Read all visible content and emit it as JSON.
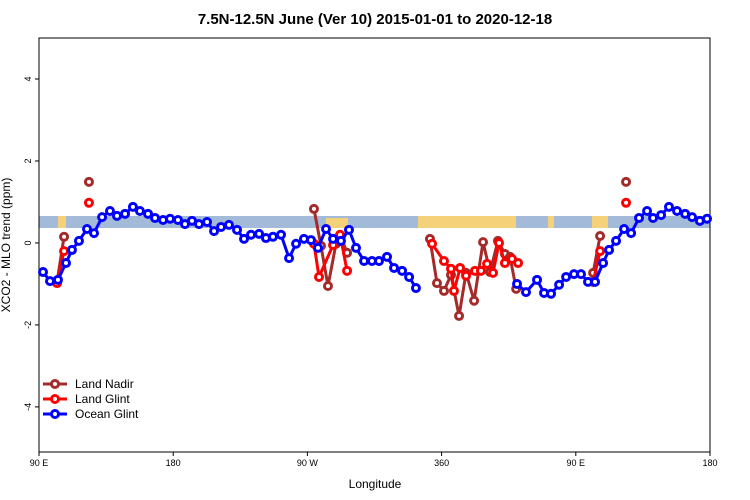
{
  "chart_data": {
    "type": "line",
    "title": "7.5N-12.5N June (Ver 10)   2015-01-01 to 2020-12-18",
    "x_label": "Longitude",
    "y_label": "XCO2 - MLO trend (ppm)",
    "xlim": [
      90,
      540
    ],
    "xticks": [
      {
        "value": 90,
        "label": "90 E"
      },
      180,
      {
        "value": 270,
        "label": "90 W"
      },
      360,
      {
        "value": 450,
        "label": "90 E"
      },
      {
        "value": 540,
        "label": "180"
      }
    ],
    "ylim": [
      -5.1,
      5
    ],
    "yticks": [
      -4,
      -2,
      0,
      2,
      4
    ],
    "legend": "bottom-left",
    "series": [
      {
        "name": "Land Nadir",
        "color": "#a52a2a",
        "x": [
          102.1,
          106.8,
          null,
          123.5,
          null,
          274.4,
          279.1,
          283.8,
          289.2,
          292.5,
          296.6,
          null,
          352.2,
          356.9,
          361.6,
          366.3,
          371.7,
          376.4,
          381.8,
          387.8,
          392.5,
          397.8,
          402.5,
          405.9,
          410.0,
          null,
          461.6,
          466.3,
          null,
          483.7
        ],
        "values": [
          -0.95,
          0.15,
          null,
          1.49,
          null,
          0.83,
          -0.07,
          -1.05,
          -0.02,
          0.15,
          -0.24,
          null,
          0.1,
          -0.98,
          -1.17,
          -0.78,
          -1.78,
          -0.73,
          -1.41,
          0.02,
          -0.71,
          0.05,
          -0.27,
          -0.34,
          -1.12,
          null,
          -0.73,
          0.17,
          null,
          1.49
        ]
      },
      {
        "name": "Land Glint",
        "color": "#ff0000",
        "x": [
          102.1,
          106.8,
          null,
          123.5,
          null,
          274.4,
          277.8,
          287.2,
          291.9,
          296.6,
          null,
          353.6,
          361.6,
          366.3,
          368.3,
          372.4,
          376.4,
          382.4,
          386.4,
          390.5,
          394.5,
          398.5,
          402.5,
          407.2,
          411.3,
          null,
          461.6,
          466.3,
          null,
          483.7
        ],
        "values": [
          -0.98,
          -0.2,
          null,
          0.98,
          null,
          -0.02,
          -0.83,
          -0.05,
          0.2,
          -0.68,
          null,
          -0.02,
          -0.44,
          -0.63,
          -1.17,
          -0.61,
          -0.8,
          -0.68,
          -0.68,
          -0.51,
          -0.73,
          0.0,
          -0.49,
          -0.39,
          -0.49,
          null,
          -0.95,
          -0.2,
          null,
          0.98
        ]
      },
      {
        "name": "Ocean Glint",
        "color": "#0000ff",
        "x": [
          92.7,
          97.4,
          102.7,
          108.1,
          112.1,
          116.8,
          122.2,
          126.9,
          132.3,
          137.6,
          142.3,
          147.7,
          153.0,
          157.7,
          163.1,
          167.8,
          173.2,
          177.9,
          183.2,
          187.9,
          192.6,
          197.3,
          202.7,
          207.4,
          212.1,
          217.4,
          222.8,
          227.5,
          232.2,
          237.6,
          242.2,
          246.9,
          252.3,
          257.7,
          262.4,
          267.7,
          272.4,
          277.1,
          282.5,
          287.2,
          292.5,
          297.9,
          302.6,
          308.0,
          313.3,
          318.0,
          323.4,
          328.1,
          333.5,
          338.2,
          342.8,
          null,
          410.6,
          416.6,
          424.0,
          428.7,
          433.4,
          438.8,
          443.5,
          448.8,
          453.5,
          458.2,
          462.9,
          468.3,
          472.3,
          477.0,
          482.4,
          487.1,
          492.4,
          497.8,
          501.8,
          507.2,
          512.5,
          517.9,
          523.3,
          528.0,
          533.2,
          538.0
        ],
        "values": [
          -0.71,
          -0.93,
          -0.9,
          -0.49,
          -0.17,
          0.05,
          0.34,
          0.24,
          0.63,
          0.78,
          0.66,
          0.71,
          0.88,
          0.78,
          0.71,
          0.61,
          0.56,
          0.59,
          0.56,
          0.46,
          0.54,
          0.46,
          0.51,
          0.29,
          0.39,
          0.44,
          0.32,
          0.1,
          0.2,
          0.22,
          0.12,
          0.15,
          0.2,
          -0.37,
          -0.02,
          0.1,
          0.07,
          -0.12,
          0.34,
          0.1,
          0.05,
          0.32,
          -0.12,
          -0.44,
          -0.44,
          -0.44,
          -0.34,
          -0.61,
          -0.68,
          -0.83,
          -1.1,
          null,
          -1.0,
          -1.2,
          -0.9,
          -1.22,
          -1.24,
          -1.02,
          -0.83,
          -0.76,
          -0.76,
          -0.95,
          -0.95,
          -0.49,
          -0.17,
          0.05,
          0.34,
          0.24,
          0.61,
          0.78,
          0.61,
          0.68,
          0.88,
          0.78,
          0.71,
          0.63,
          0.54,
          0.59
        ]
      }
    ]
  }
}
